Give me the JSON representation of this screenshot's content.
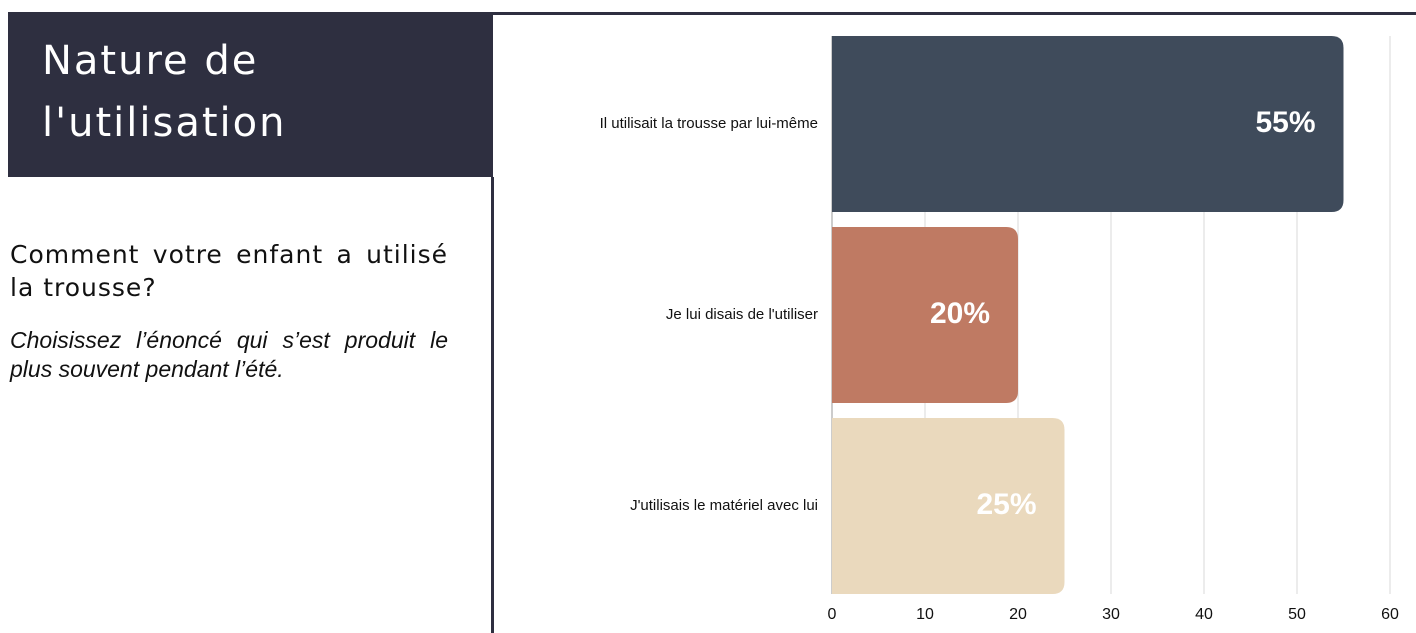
{
  "header": {
    "title": "Nature de l'utilisation"
  },
  "question": "Comment votre enfant a utilisé la trousse?",
  "instruction": "Choisissez l’énoncé qui s’est produit le plus souvent pendant l’été.",
  "chart_data": {
    "type": "bar",
    "orientation": "horizontal",
    "categories": [
      "Il utilisait la trousse par lui-même",
      "Je lui disais de l'utiliser",
      "J'utilisais le matériel avec lui"
    ],
    "values": [
      55,
      20,
      25
    ],
    "value_labels": [
      "55%",
      "20%",
      "25%"
    ],
    "colors": [
      "#3f4b5b",
      "#bf7a63",
      "#ead9bd"
    ],
    "xlim": [
      0,
      60
    ],
    "xticks": [
      0,
      10,
      20,
      30,
      40,
      50,
      60
    ],
    "grid": true
  }
}
